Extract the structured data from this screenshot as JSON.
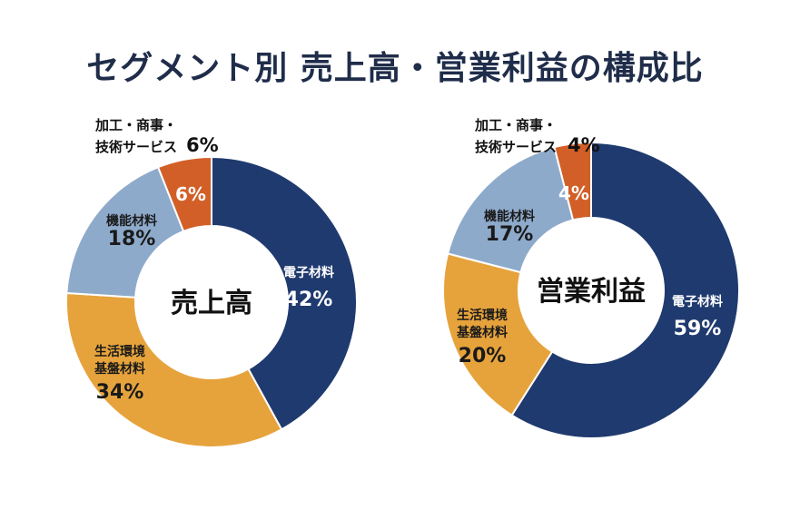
{
  "title": "セグメント別 売上高・営業利益の構成比",
  "colors": {
    "電子材料": "#1f3a6e",
    "生活環境基盤材料": "#e6a33c",
    "機能材料": "#8eaacb",
    "加工・商事・技術サービス": "#d25f27"
  },
  "chart_data": [
    {
      "type": "pie",
      "title": "売上高",
      "categories": [
        "電子材料",
        "生活環境基盤材料",
        "機能材料",
        "加工・商事・技術サービス"
      ],
      "values": [
        42,
        34,
        18,
        6
      ],
      "unit": "%"
    },
    {
      "type": "pie",
      "title": "営業利益",
      "categories": [
        "電子材料",
        "生活環境基盤材料",
        "機能材料",
        "加工・商事・技術サービス"
      ],
      "values": [
        59,
        20,
        17,
        4
      ],
      "unit": "%"
    }
  ]
}
